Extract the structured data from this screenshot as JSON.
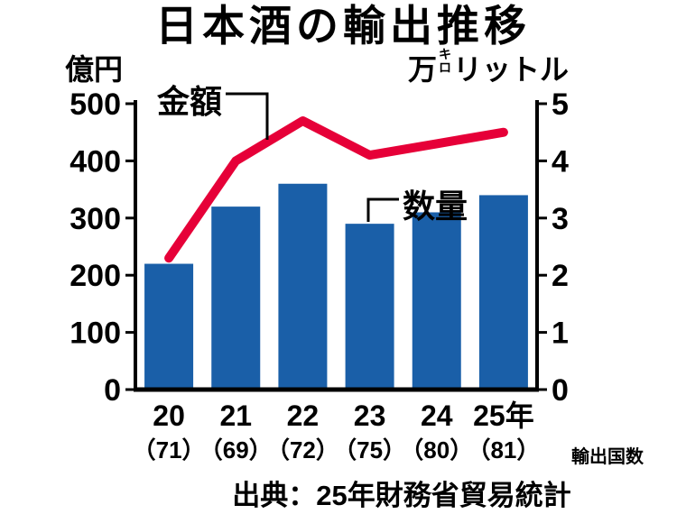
{
  "title": "日本酒の輸出推移",
  "axes": {
    "left_unit": "億円",
    "right_unit_man": "万",
    "right_unit_kilo_top": "キ",
    "right_unit_kilo_bottom": "ロ",
    "right_unit_litre": "リットル"
  },
  "annotations": {
    "amount_label": "金額",
    "quantity_label": "数量",
    "countries_label": "輸出国数"
  },
  "source": "出典：25年財務省貿易統計",
  "chart_data": {
    "type": "bar",
    "title": "日本酒の輸出推移",
    "categories": [
      "20",
      "21",
      "22",
      "23",
      "24",
      "25年"
    ],
    "export_country_counts": [
      "（71）",
      "（69）",
      "（72）",
      "（75）",
      "（80）",
      "（81）"
    ],
    "series": [
      {
        "name": "金額",
        "type": "line",
        "axis": "left",
        "unit": "億円",
        "values": [
          230,
          400,
          470,
          410,
          430,
          450
        ]
      },
      {
        "name": "数量",
        "type": "bar",
        "axis": "right",
        "unit": "万キロリットル",
        "values": [
          2.2,
          3.2,
          3.6,
          2.9,
          3.1,
          3.4
        ]
      }
    ],
    "left_axis": {
      "unit": "億円",
      "range": [
        0,
        500
      ],
      "ticks": [
        0,
        100,
        200,
        300,
        400,
        500
      ]
    },
    "right_axis": {
      "unit": "万キロリットル",
      "range": [
        0,
        5
      ],
      "ticks": [
        0,
        1,
        2,
        3,
        4,
        5
      ]
    },
    "colors": {
      "bar": "#1a5fa8",
      "line": "#e60038",
      "axis": "#000000"
    },
    "grid": false,
    "legend_position": "inline-annotations"
  }
}
